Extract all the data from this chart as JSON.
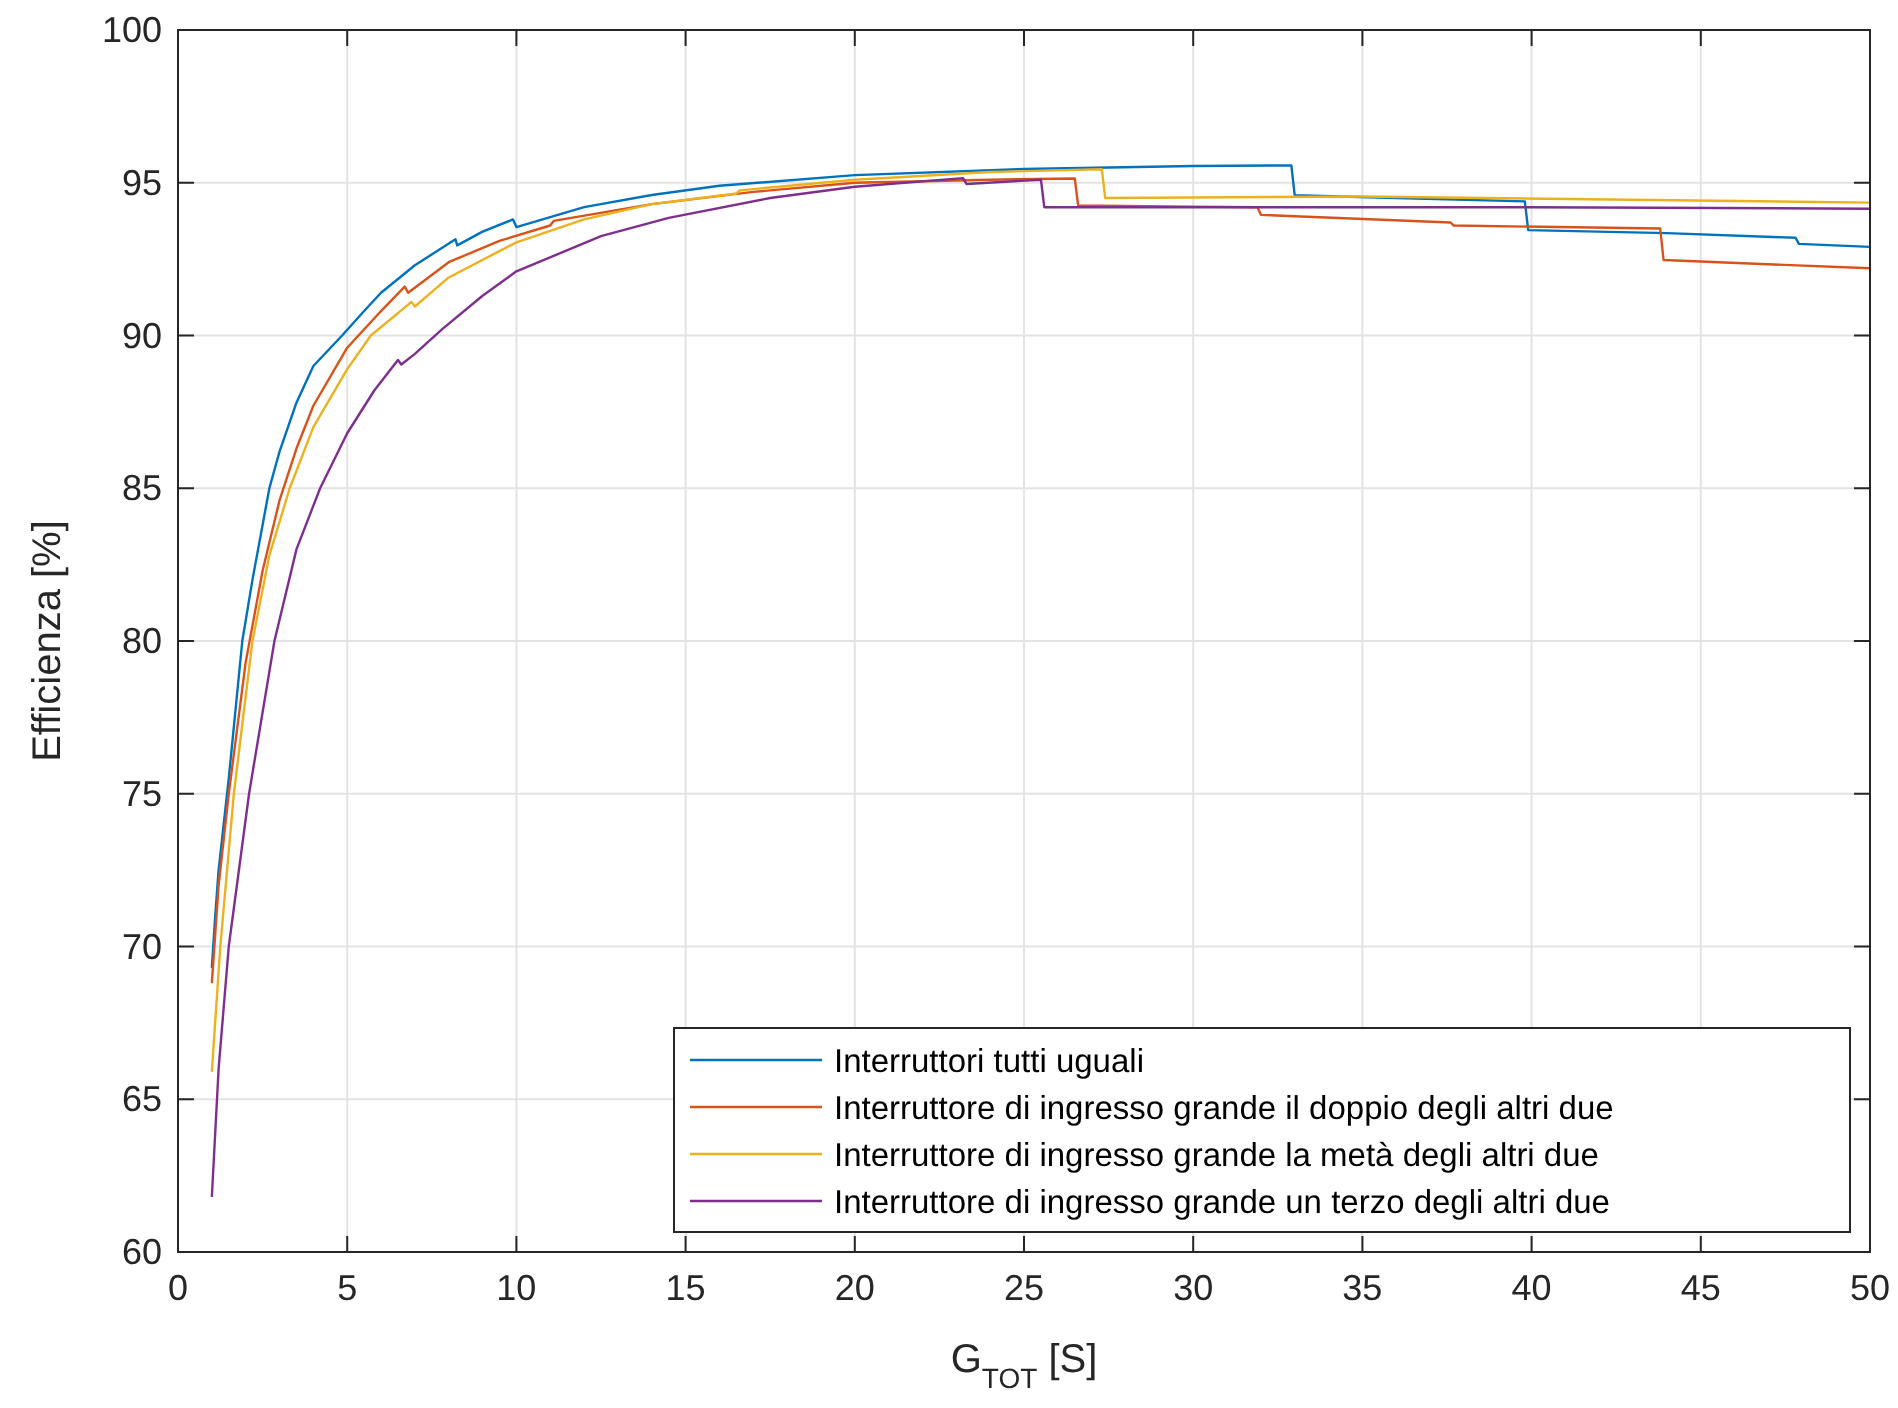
{
  "chart_data": {
    "type": "line",
    "xlabel": "G$_{TOT}$ [S]",
    "ylabel": "Efficienza [%]",
    "xlim": [
      0,
      50
    ],
    "ylim": [
      60,
      100
    ],
    "xticks": [
      0,
      5,
      10,
      15,
      20,
      25,
      30,
      35,
      40,
      45,
      50
    ],
    "yticks": [
      60,
      65,
      70,
      75,
      80,
      85,
      90,
      95,
      100
    ],
    "grid": true,
    "legend": "bottom right",
    "line_style": "solid",
    "series": [
      {
        "name": "Interruttori tutti uguali",
        "color": "#0072bd",
        "x": [
          1,
          1.1,
          1.2,
          1.5,
          1.9,
          2.2,
          2.7,
          3,
          3.5,
          4,
          4.85,
          5.5,
          6,
          7,
          8.2,
          8.25,
          9,
          9.9,
          10,
          12,
          14,
          16,
          20,
          25,
          30,
          32.9,
          33,
          36,
          39.8,
          39.9,
          44,
          47.8,
          47.9,
          50
        ],
        "values": [
          69.3,
          71,
          72.5,
          75.5,
          80,
          82,
          85,
          86.2,
          87.8,
          89,
          90,
          90.8,
          91.4,
          92.3,
          93.15,
          92.95,
          93.4,
          93.8,
          93.55,
          94.2,
          94.6,
          94.9,
          95.25,
          95.45,
          95.55,
          95.57,
          94.59,
          94.5,
          94.39,
          93.45,
          93.35,
          93.2,
          93,
          92.9
        ]
      },
      {
        "name": "Interruttore di ingresso grande il doppio degli altri due",
        "color": "#d95319",
        "x": [
          1,
          1.2,
          1.5,
          2,
          2.5,
          3,
          3.5,
          4,
          5,
          6,
          6.7,
          6.8,
          8,
          9.5,
          11,
          11.1,
          14,
          17,
          20,
          24,
          26.5,
          26.6,
          30,
          31.9,
          32,
          37.6,
          37.7,
          43.8,
          43.9,
          50
        ],
        "values": [
          68.8,
          72,
          75,
          79.3,
          82.3,
          84.6,
          86.3,
          87.7,
          89.6,
          90.8,
          91.6,
          91.4,
          92.4,
          93.1,
          93.6,
          93.75,
          94.3,
          94.7,
          95,
          95.1,
          95.14,
          94.26,
          94.22,
          94.2,
          93.95,
          93.7,
          93.6,
          93.5,
          92.47,
          92.2
        ]
      },
      {
        "name": "Interruttore di ingresso grande la metà degli altri due",
        "color": "#edb120",
        "x": [
          1,
          1.25,
          1.65,
          2.2,
          2.7,
          3.3,
          4,
          5,
          5.7,
          6.9,
          7,
          8,
          10,
          12,
          14,
          16.5,
          16.6,
          20,
          24,
          27.3,
          27.4,
          35,
          50
        ],
        "values": [
          65.9,
          70,
          75,
          80,
          82.8,
          85,
          87,
          88.9,
          90,
          91.1,
          90.95,
          91.9,
          93.05,
          93.8,
          94.3,
          94.65,
          94.75,
          95.1,
          95.35,
          95.44,
          94.5,
          94.55,
          94.35
        ]
      },
      {
        "name": "Interruttore di ingresso grande un terzo degli altri due",
        "color": "#7e2f8e",
        "x": [
          1,
          1.2,
          1.5,
          2.1,
          2.85,
          3.5,
          4.2,
          5,
          5.8,
          6.5,
          6.6,
          7,
          7.8,
          9,
          10,
          12.5,
          14.5,
          17.5,
          20,
          23.2,
          23.3,
          25.5,
          25.6,
          30,
          40,
          50
        ],
        "values": [
          61.8,
          66,
          70,
          75,
          80,
          83,
          85,
          86.8,
          88.2,
          89.2,
          89.05,
          89.4,
          90.2,
          91.3,
          92.1,
          93.25,
          93.85,
          94.5,
          94.87,
          95.15,
          94.96,
          95.1,
          94.2,
          94.2,
          94.2,
          94.15
        ]
      }
    ]
  }
}
